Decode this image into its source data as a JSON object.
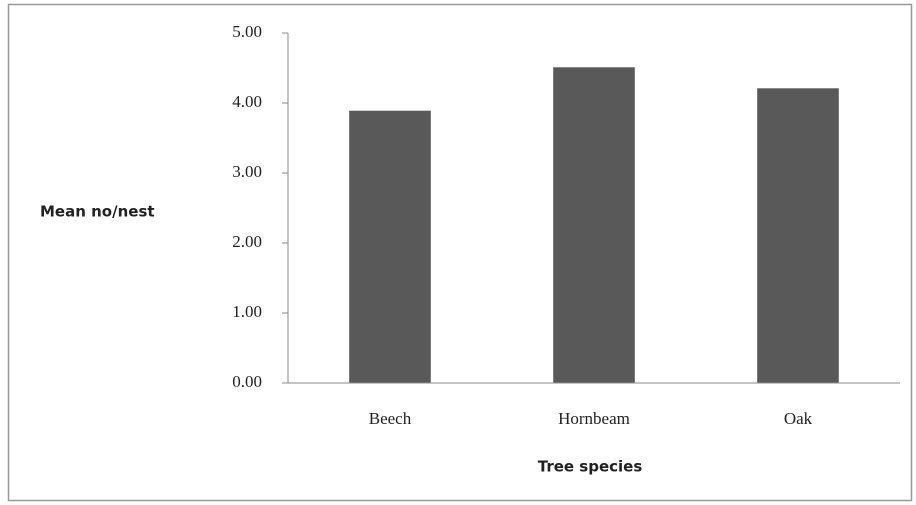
{
  "chart_data": {
    "type": "bar",
    "x_label": "Tree species",
    "y_label": "Mean no/nest",
    "categories": [
      "Beech",
      "Hornbeam",
      "Oak"
    ],
    "values": [
      3.89,
      4.51,
      4.21
    ],
    "color": "#595959",
    "ylim": [
      0,
      5
    ],
    "yticks": [
      {
        "value": 0,
        "label": "0.00"
      },
      {
        "value": 1,
        "label": "1.00"
      },
      {
        "value": 2,
        "label": "2.00"
      },
      {
        "value": 3,
        "label": "3.00"
      },
      {
        "value": 4,
        "label": "4.00"
      },
      {
        "value": 5,
        "label": "5.00"
      }
    ],
    "grid": false
  }
}
